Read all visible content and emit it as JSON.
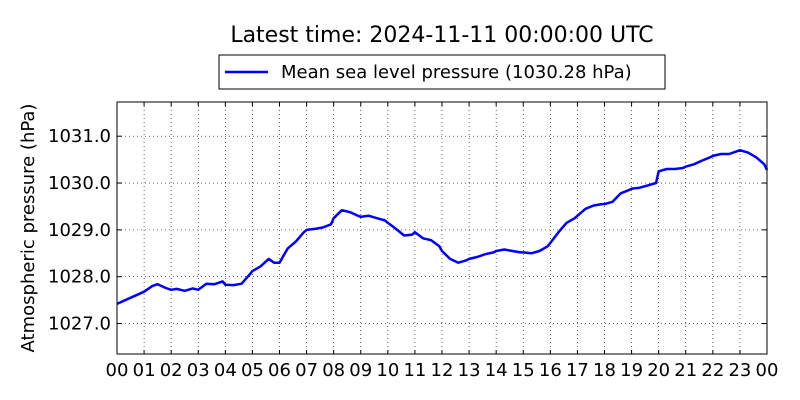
{
  "chart_data": {
    "type": "line",
    "title": "Latest time: 2024-11-11 00:00:00 UTC",
    "xlabel": "",
    "ylabel": "Atmospheric pressure (hPa)",
    "x_tick_labels": [
      "00",
      "01",
      "02",
      "03",
      "04",
      "05",
      "06",
      "07",
      "08",
      "09",
      "10",
      "11",
      "12",
      "13",
      "14",
      "15",
      "16",
      "17",
      "18",
      "19",
      "20",
      "21",
      "22",
      "23",
      "00"
    ],
    "y_ticks": [
      1027.0,
      1028.0,
      1029.0,
      1030.0,
      1031.0
    ],
    "y_tick_labels": [
      "1027.0",
      "1028.0",
      "1029.0",
      "1030.0",
      "1031.0"
    ],
    "xlim": [
      0,
      24
    ],
    "ylim": [
      1026.35,
      1031.73
    ],
    "grid": true,
    "legend_position": "top-center-outside",
    "series": [
      {
        "name": "Mean sea level pressure (1030.28 hPa)",
        "color": "#0000ff",
        "x": [
          0,
          0.5,
          1.0,
          1.3,
          1.5,
          1.8,
          2.0,
          2.2,
          2.5,
          2.8,
          3.0,
          3.3,
          3.6,
          3.9,
          4.0,
          4.3,
          4.6,
          4.9,
          5.0,
          5.3,
          5.6,
          5.8,
          6.0,
          6.3,
          6.6,
          6.9,
          7.0,
          7.3,
          7.6,
          7.9,
          8.0,
          8.3,
          8.6,
          8.9,
          9.0,
          9.3,
          9.6,
          9.9,
          10.0,
          10.3,
          10.6,
          10.9,
          11.0,
          11.3,
          11.6,
          11.9,
          12.0,
          12.3,
          12.6,
          12.9,
          13.0,
          13.3,
          13.6,
          13.9,
          14.0,
          14.3,
          14.6,
          14.9,
          15.0,
          15.3,
          15.6,
          15.9,
          16.0,
          16.3,
          16.6,
          16.9,
          17.0,
          17.3,
          17.6,
          17.9,
          18.0,
          18.3,
          18.6,
          18.9,
          19.0,
          19.3,
          19.6,
          19.9,
          20.0,
          20.3,
          20.6,
          20.9,
          21.0,
          21.3,
          21.6,
          21.9,
          22.0,
          22.3,
          22.6,
          22.9,
          23.0,
          23.3,
          23.6,
          23.9,
          24.0
        ],
        "values": [
          1027.42,
          1027.55,
          1027.68,
          1027.8,
          1027.84,
          1027.76,
          1027.72,
          1027.74,
          1027.7,
          1027.75,
          1027.72,
          1027.85,
          1027.84,
          1027.9,
          1027.83,
          1027.82,
          1027.85,
          1028.05,
          1028.12,
          1028.22,
          1028.38,
          1028.3,
          1028.3,
          1028.6,
          1028.75,
          1028.95,
          1029.0,
          1029.02,
          1029.05,
          1029.12,
          1029.25,
          1029.42,
          1029.38,
          1029.3,
          1029.28,
          1029.3,
          1029.25,
          1029.2,
          1029.15,
          1029.02,
          1028.88,
          1028.9,
          1028.95,
          1028.82,
          1028.78,
          1028.65,
          1028.55,
          1028.38,
          1028.3,
          1028.35,
          1028.38,
          1028.42,
          1028.48,
          1028.52,
          1028.55,
          1028.58,
          1028.55,
          1028.52,
          1028.52,
          1028.5,
          1028.55,
          1028.65,
          1028.72,
          1028.95,
          1029.15,
          1029.25,
          1029.3,
          1029.45,
          1029.52,
          1029.55,
          1029.55,
          1029.6,
          1029.78,
          1029.85,
          1029.88,
          1029.9,
          1029.95,
          1030.0,
          1030.25,
          1030.3,
          1030.3,
          1030.32,
          1030.35,
          1030.4,
          1030.48,
          1030.55,
          1030.58,
          1030.62,
          1030.62,
          1030.68,
          1030.7,
          1030.65,
          1030.55,
          1030.4,
          1030.28
        ]
      }
    ]
  }
}
